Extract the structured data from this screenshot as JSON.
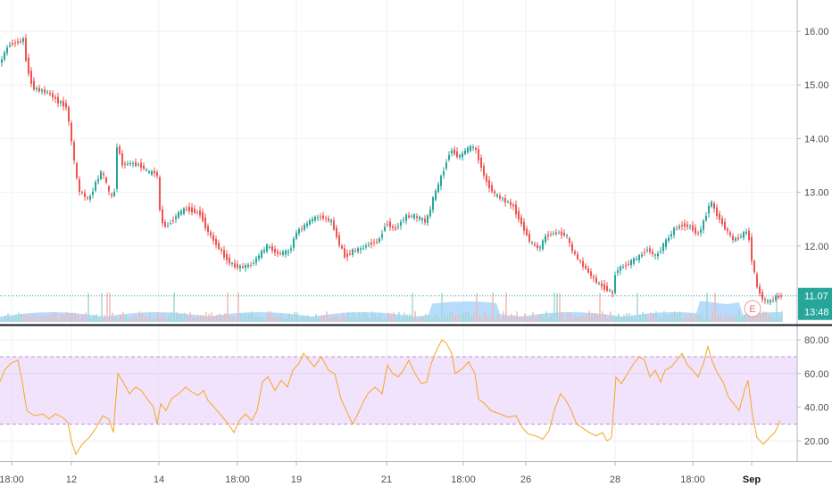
{
  "chart_data": [
    {
      "type": "candlestick",
      "panel": "price",
      "y_ticks": [
        "16.00",
        "15.00",
        "14.00",
        "13.00",
        "12.00"
      ],
      "y_tick_values": [
        16,
        15,
        14,
        13,
        12
      ],
      "ylim": [
        10.55,
        16.45
      ],
      "last_price": 11.07,
      "last_price_label": "11.07",
      "countdown_label": "13:48",
      "earnings_marker": "E",
      "grid": true,
      "colors": {
        "up": "#26a69a",
        "down": "#ef5350",
        "volume_area": "#90caf9",
        "price_line": "#26a69a"
      },
      "close_path": [
        [
          0,
          15.4
        ],
        [
          10,
          15.75
        ],
        [
          20,
          15.8
        ],
        [
          27,
          15.85
        ],
        [
          30,
          15.4
        ],
        [
          37,
          14.95
        ],
        [
          45,
          14.9
        ],
        [
          55,
          14.85
        ],
        [
          65,
          14.7
        ],
        [
          75,
          14.6
        ],
        [
          80,
          14.0
        ],
        [
          88,
          13.05
        ],
        [
          100,
          12.85
        ],
        [
          108,
          13.2
        ],
        [
          115,
          13.4
        ],
        [
          122,
          13.0
        ],
        [
          128,
          12.85
        ],
        [
          131,
          13.9
        ],
        [
          138,
          13.5
        ],
        [
          145,
          13.55
        ],
        [
          158,
          13.5
        ],
        [
          168,
          13.35
        ],
        [
          176,
          13.4
        ],
        [
          180,
          12.55
        ],
        [
          185,
          12.35
        ],
        [
          192,
          12.45
        ],
        [
          200,
          12.6
        ],
        [
          210,
          12.7
        ],
        [
          225,
          12.6
        ],
        [
          232,
          12.3
        ],
        [
          240,
          12.1
        ],
        [
          250,
          11.85
        ],
        [
          260,
          11.65
        ],
        [
          270,
          11.6
        ],
        [
          282,
          11.65
        ],
        [
          292,
          11.85
        ],
        [
          300,
          12.0
        ],
        [
          312,
          11.85
        ],
        [
          325,
          11.9
        ],
        [
          332,
          12.25
        ],
        [
          340,
          12.35
        ],
        [
          350,
          12.5
        ],
        [
          360,
          12.55
        ],
        [
          372,
          12.45
        ],
        [
          380,
          12.05
        ],
        [
          387,
          11.8
        ],
        [
          395,
          11.9
        ],
        [
          405,
          11.95
        ],
        [
          415,
          12.05
        ],
        [
          425,
          12.1
        ],
        [
          433,
          12.45
        ],
        [
          442,
          12.3
        ],
        [
          455,
          12.55
        ],
        [
          465,
          12.55
        ],
        [
          478,
          12.45
        ],
        [
          486,
          12.9
        ],
        [
          495,
          13.3
        ],
        [
          505,
          13.8
        ],
        [
          515,
          13.65
        ],
        [
          523,
          13.8
        ],
        [
          532,
          13.85
        ],
        [
          538,
          13.55
        ],
        [
          545,
          13.2
        ],
        [
          555,
          12.95
        ],
        [
          565,
          12.85
        ],
        [
          575,
          12.75
        ],
        [
          585,
          12.4
        ],
        [
          595,
          12.05
        ],
        [
          605,
          11.95
        ],
        [
          612,
          12.2
        ],
        [
          625,
          12.25
        ],
        [
          635,
          12.2
        ],
        [
          640,
          11.95
        ],
        [
          648,
          11.75
        ],
        [
          660,
          11.5
        ],
        [
          670,
          11.3
        ],
        [
          680,
          11.2
        ],
        [
          687,
          11.1
        ],
        [
          690,
          11.55
        ],
        [
          697,
          11.6
        ],
        [
          707,
          11.7
        ],
        [
          717,
          11.8
        ],
        [
          725,
          11.95
        ],
        [
          735,
          11.8
        ],
        [
          745,
          12.05
        ],
        [
          755,
          12.3
        ],
        [
          765,
          12.4
        ],
        [
          775,
          12.35
        ],
        [
          782,
          12.2
        ],
        [
          790,
          12.5
        ],
        [
          796,
          12.85
        ],
        [
          803,
          12.6
        ],
        [
          812,
          12.35
        ],
        [
          822,
          12.1
        ],
        [
          832,
          12.2
        ],
        [
          838,
          12.3
        ],
        [
          843,
          11.7
        ],
        [
          848,
          11.25
        ],
        [
          855,
          11.0
        ],
        [
          862,
          10.95
        ],
        [
          870,
          11.05
        ],
        [
          876,
          11.07
        ]
      ]
    },
    {
      "type": "line",
      "panel": "oscillator",
      "y_ticks": [
        "80.00",
        "60.00",
        "40.00",
        "20.00"
      ],
      "y_tick_values": [
        80,
        60,
        40,
        20
      ],
      "ylim": [
        8,
        88
      ],
      "band": [
        30,
        70
      ],
      "colors": {
        "line": "#f5a623",
        "band_fill": "#eed9fb",
        "band_border": "#c293d6"
      },
      "points": [
        [
          0,
          55
        ],
        [
          5,
          62
        ],
        [
          12,
          66
        ],
        [
          20,
          68
        ],
        [
          25,
          55
        ],
        [
          30,
          38
        ],
        [
          38,
          35
        ],
        [
          48,
          36
        ],
        [
          55,
          33
        ],
        [
          62,
          36
        ],
        [
          70,
          34
        ],
        [
          76,
          31
        ],
        [
          80,
          20
        ],
        [
          85,
          12
        ],
        [
          92,
          18
        ],
        [
          100,
          22
        ],
        [
          108,
          28
        ],
        [
          115,
          35
        ],
        [
          122,
          33
        ],
        [
          127,
          25
        ],
        [
          132,
          60
        ],
        [
          138,
          55
        ],
        [
          145,
          48
        ],
        [
          152,
          52
        ],
        [
          158,
          50
        ],
        [
          165,
          45
        ],
        [
          172,
          40
        ],
        [
          176,
          30
        ],
        [
          180,
          42
        ],
        [
          186,
          38
        ],
        [
          192,
          45
        ],
        [
          200,
          48
        ],
        [
          208,
          52
        ],
        [
          215,
          49
        ],
        [
          222,
          47
        ],
        [
          228,
          50
        ],
        [
          233,
          44
        ],
        [
          240,
          40
        ],
        [
          248,
          35
        ],
        [
          256,
          30
        ],
        [
          262,
          25
        ],
        [
          268,
          32
        ],
        [
          275,
          36
        ],
        [
          282,
          32
        ],
        [
          288,
          38
        ],
        [
          294,
          55
        ],
        [
          300,
          58
        ],
        [
          308,
          50
        ],
        [
          315,
          56
        ],
        [
          322,
          52
        ],
        [
          328,
          62
        ],
        [
          335,
          66
        ],
        [
          340,
          72
        ],
        [
          346,
          68
        ],
        [
          352,
          64
        ],
        [
          360,
          70
        ],
        [
          368,
          62
        ],
        [
          375,
          60
        ],
        [
          382,
          45
        ],
        [
          388,
          38
        ],
        [
          395,
          30
        ],
        [
          400,
          35
        ],
        [
          406,
          42
        ],
        [
          412,
          48
        ],
        [
          420,
          52
        ],
        [
          428,
          48
        ],
        [
          434,
          65
        ],
        [
          440,
          60
        ],
        [
          446,
          58
        ],
        [
          452,
          62
        ],
        [
          458,
          68
        ],
        [
          465,
          60
        ],
        [
          472,
          54
        ],
        [
          478,
          55
        ],
        [
          483,
          66
        ],
        [
          490,
          75
        ],
        [
          495,
          80
        ],
        [
          500,
          78
        ],
        [
          506,
          72
        ],
        [
          510,
          60
        ],
        [
          518,
          63
        ],
        [
          525,
          67
        ],
        [
          532,
          60
        ],
        [
          536,
          45
        ],
        [
          543,
          42
        ],
        [
          550,
          38
        ],
        [
          560,
          36
        ],
        [
          570,
          34
        ],
        [
          578,
          35
        ],
        [
          585,
          28
        ],
        [
          592,
          24
        ],
        [
          600,
          23
        ],
        [
          608,
          21
        ],
        [
          615,
          26
        ],
        [
          622,
          40
        ],
        [
          628,
          48
        ],
        [
          634,
          44
        ],
        [
          640,
          38
        ],
        [
          646,
          30
        ],
        [
          652,
          28
        ],
        [
          660,
          25
        ],
        [
          668,
          23
        ],
        [
          675,
          25
        ],
        [
          680,
          20
        ],
        [
          685,
          22
        ],
        [
          690,
          58
        ],
        [
          696,
          54
        ],
        [
          703,
          60
        ],
        [
          710,
          66
        ],
        [
          716,
          70
        ],
        [
          722,
          68
        ],
        [
          728,
          58
        ],
        [
          734,
          62
        ],
        [
          740,
          55
        ],
        [
          745,
          62
        ],
        [
          752,
          64
        ],
        [
          758,
          68
        ],
        [
          764,
          72
        ],
        [
          770,
          65
        ],
        [
          776,
          62
        ],
        [
          782,
          58
        ],
        [
          788,
          66
        ],
        [
          793,
          76
        ],
        [
          798,
          67
        ],
        [
          804,
          60
        ],
        [
          810,
          55
        ],
        [
          816,
          46
        ],
        [
          822,
          42
        ],
        [
          828,
          38
        ],
        [
          834,
          50
        ],
        [
          838,
          56
        ],
        [
          843,
          35
        ],
        [
          848,
          22
        ],
        [
          855,
          18
        ],
        [
          862,
          22
        ],
        [
          868,
          25
        ],
        [
          874,
          32
        ]
      ]
    }
  ],
  "x_axis": {
    "labels": [
      {
        "text": "18:00",
        "x": 13
      },
      {
        "text": "12",
        "x": 80
      },
      {
        "text": "14",
        "x": 178
      },
      {
        "text": "18:00",
        "x": 266
      },
      {
        "text": "19",
        "x": 332
      },
      {
        "text": "21",
        "x": 433
      },
      {
        "text": "18:00",
        "x": 519
      },
      {
        "text": "26",
        "x": 589
      },
      {
        "text": "28",
        "x": 689
      },
      {
        "text": "18:00",
        "x": 776
      },
      {
        "text": "Sep",
        "x": 842
      }
    ]
  }
}
